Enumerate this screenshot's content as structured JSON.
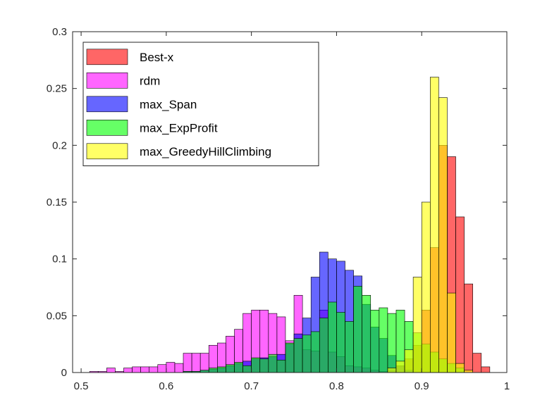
{
  "chart_data": {
    "type": "histogram",
    "title": "",
    "xlabel": "",
    "ylabel": "",
    "xlim": [
      0.49,
      1.0
    ],
    "ylim": [
      0,
      0.3
    ],
    "bin_width": 0.01,
    "xticks": [
      0.5,
      0.6,
      0.7,
      0.8,
      0.9,
      1
    ],
    "yticks": [
      0,
      0.05,
      0.1,
      0.15,
      0.2,
      0.25,
      0.3
    ],
    "grid": false,
    "legend_position": "top-left",
    "series": [
      {
        "name": "Best-x",
        "color": "#ff0000",
        "bins": [
          {
            "x": 0.865,
            "y": 0.002
          },
          {
            "x": 0.875,
            "y": 0.006
          },
          {
            "x": 0.885,
            "y": 0.012
          },
          {
            "x": 0.895,
            "y": 0.024
          },
          {
            "x": 0.905,
            "y": 0.055
          },
          {
            "x": 0.915,
            "y": 0.11
          },
          {
            "x": 0.925,
            "y": 0.2
          },
          {
            "x": 0.935,
            "y": 0.19
          },
          {
            "x": 0.945,
            "y": 0.137
          },
          {
            "x": 0.955,
            "y": 0.078
          },
          {
            "x": 0.965,
            "y": 0.017
          },
          {
            "x": 0.975,
            "y": 0.005
          }
        ]
      },
      {
        "name": "rdm",
        "color": "#ff00ff",
        "bins": [
          {
            "x": 0.515,
            "y": 0.001
          },
          {
            "x": 0.525,
            "y": 0.001
          },
          {
            "x": 0.535,
            "y": 0.004
          },
          {
            "x": 0.545,
            "y": 0.001
          },
          {
            "x": 0.555,
            "y": 0.004
          },
          {
            "x": 0.565,
            "y": 0.005
          },
          {
            "x": 0.575,
            "y": 0.005
          },
          {
            "x": 0.585,
            "y": 0.005
          },
          {
            "x": 0.595,
            "y": 0.007
          },
          {
            "x": 0.605,
            "y": 0.009
          },
          {
            "x": 0.615,
            "y": 0.008
          },
          {
            "x": 0.625,
            "y": 0.017
          },
          {
            "x": 0.635,
            "y": 0.017
          },
          {
            "x": 0.645,
            "y": 0.017
          },
          {
            "x": 0.655,
            "y": 0.024
          },
          {
            "x": 0.665,
            "y": 0.026
          },
          {
            "x": 0.675,
            "y": 0.032
          },
          {
            "x": 0.685,
            "y": 0.038
          },
          {
            "x": 0.695,
            "y": 0.052
          },
          {
            "x": 0.705,
            "y": 0.055
          },
          {
            "x": 0.715,
            "y": 0.055
          },
          {
            "x": 0.725,
            "y": 0.052
          },
          {
            "x": 0.735,
            "y": 0.049
          },
          {
            "x": 0.745,
            "y": 0.028
          },
          {
            "x": 0.755,
            "y": 0.068
          },
          {
            "x": 0.765,
            "y": 0.02
          },
          {
            "x": 0.775,
            "y": 0.019
          },
          {
            "x": 0.785,
            "y": 0.055
          },
          {
            "x": 0.795,
            "y": 0.018
          },
          {
            "x": 0.805,
            "y": 0.014
          },
          {
            "x": 0.815,
            "y": 0.006
          },
          {
            "x": 0.825,
            "y": 0.005
          },
          {
            "x": 0.835,
            "y": 0.004
          },
          {
            "x": 0.845,
            "y": 0.002
          },
          {
            "x": 0.855,
            "y": 0.001
          },
          {
            "x": 0.865,
            "y": 0.001
          }
        ]
      },
      {
        "name": "max_Span",
        "color": "#0000ff",
        "bins": [
          {
            "x": 0.625,
            "y": 0.001
          },
          {
            "x": 0.635,
            "y": 0.001
          },
          {
            "x": 0.645,
            "y": 0.002
          },
          {
            "x": 0.655,
            "y": 0.003
          },
          {
            "x": 0.665,
            "y": 0.004
          },
          {
            "x": 0.675,
            "y": 0.006
          },
          {
            "x": 0.685,
            "y": 0.008
          },
          {
            "x": 0.695,
            "y": 0.01
          },
          {
            "x": 0.705,
            "y": 0.012
          },
          {
            "x": 0.715,
            "y": 0.013
          },
          {
            "x": 0.725,
            "y": 0.014
          },
          {
            "x": 0.735,
            "y": 0.016
          },
          {
            "x": 0.745,
            "y": 0.025
          },
          {
            "x": 0.755,
            "y": 0.034
          },
          {
            "x": 0.765,
            "y": 0.048
          },
          {
            "x": 0.775,
            "y": 0.084
          },
          {
            "x": 0.785,
            "y": 0.106
          },
          {
            "x": 0.795,
            "y": 0.1
          },
          {
            "x": 0.805,
            "y": 0.098
          },
          {
            "x": 0.815,
            "y": 0.09
          },
          {
            "x": 0.825,
            "y": 0.085
          },
          {
            "x": 0.835,
            "y": 0.06
          },
          {
            "x": 0.845,
            "y": 0.04
          },
          {
            "x": 0.855,
            "y": 0.03
          },
          {
            "x": 0.865,
            "y": 0.015
          },
          {
            "x": 0.875,
            "y": 0.006
          },
          {
            "x": 0.885,
            "y": 0.002
          }
        ]
      },
      {
        "name": "max_ExpProfit",
        "color": "#00ff00",
        "bins": [
          {
            "x": 0.625,
            "y": 0.001
          },
          {
            "x": 0.635,
            "y": 0.001
          },
          {
            "x": 0.645,
            "y": 0.002
          },
          {
            "x": 0.655,
            "y": 0.004
          },
          {
            "x": 0.665,
            "y": 0.005
          },
          {
            "x": 0.675,
            "y": 0.007
          },
          {
            "x": 0.685,
            "y": 0.009
          },
          {
            "x": 0.695,
            "y": 0.006
          },
          {
            "x": 0.705,
            "y": 0.013
          },
          {
            "x": 0.715,
            "y": 0.012
          },
          {
            "x": 0.725,
            "y": 0.016
          },
          {
            "x": 0.735,
            "y": 0.011
          },
          {
            "x": 0.745,
            "y": 0.026
          },
          {
            "x": 0.755,
            "y": 0.03
          },
          {
            "x": 0.765,
            "y": 0.033
          },
          {
            "x": 0.775,
            "y": 0.036
          },
          {
            "x": 0.785,
            "y": 0.048
          },
          {
            "x": 0.795,
            "y": 0.062
          },
          {
            "x": 0.805,
            "y": 0.053
          },
          {
            "x": 0.815,
            "y": 0.045
          },
          {
            "x": 0.825,
            "y": 0.076
          },
          {
            "x": 0.835,
            "y": 0.068
          },
          {
            "x": 0.845,
            "y": 0.055
          },
          {
            "x": 0.855,
            "y": 0.057
          },
          {
            "x": 0.865,
            "y": 0.052
          },
          {
            "x": 0.875,
            "y": 0.055
          },
          {
            "x": 0.885,
            "y": 0.045
          },
          {
            "x": 0.895,
            "y": 0.035
          },
          {
            "x": 0.905,
            "y": 0.025
          },
          {
            "x": 0.915,
            "y": 0.018
          },
          {
            "x": 0.925,
            "y": 0.012
          },
          {
            "x": 0.935,
            "y": 0.008
          },
          {
            "x": 0.945,
            "y": 0.004
          }
        ]
      },
      {
        "name": "max_GreedyHillClimbing",
        "color": "#ffff00",
        "bins": [
          {
            "x": 0.865,
            "y": 0.004
          },
          {
            "x": 0.875,
            "y": 0.01
          },
          {
            "x": 0.885,
            "y": 0.02
          },
          {
            "x": 0.895,
            "y": 0.084
          },
          {
            "x": 0.905,
            "y": 0.15
          },
          {
            "x": 0.915,
            "y": 0.26
          },
          {
            "x": 0.925,
            "y": 0.242
          },
          {
            "x": 0.935,
            "y": 0.07
          },
          {
            "x": 0.945,
            "y": 0.008
          },
          {
            "x": 0.955,
            "y": 0.002
          }
        ]
      }
    ]
  }
}
